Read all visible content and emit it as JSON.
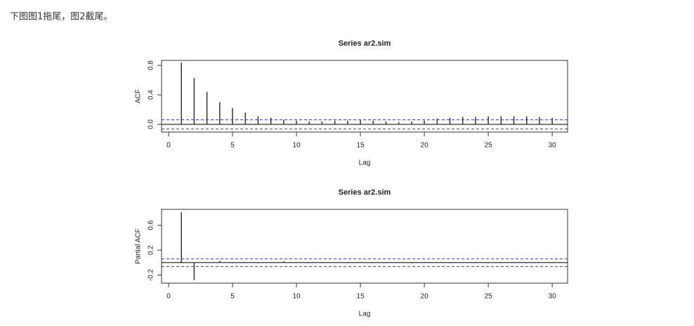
{
  "text": "下图图1拖尾，图2截尾。",
  "chart_data": [
    {
      "type": "bar",
      "title": "Series ar2.sim",
      "x_label": "Lag",
      "y_label": "ACF",
      "x": [
        1,
        2,
        3,
        4,
        5,
        6,
        7,
        8,
        9,
        10,
        11,
        12,
        13,
        14,
        15,
        16,
        17,
        18,
        19,
        20,
        21,
        22,
        23,
        24,
        25,
        26,
        27,
        28,
        29,
        30
      ],
      "values": [
        0.84,
        0.63,
        0.44,
        0.3,
        0.22,
        0.16,
        0.11,
        0.09,
        0.06,
        0.05,
        0.04,
        0.04,
        0.05,
        0.05,
        0.06,
        0.05,
        0.04,
        0.03,
        0.04,
        0.05,
        0.08,
        0.09,
        0.1,
        0.1,
        0.11,
        0.11,
        0.11,
        0.11,
        0.1,
        0.09
      ],
      "color": "#333333",
      "ci": [
        0.063,
        -0.063
      ],
      "ci_color": "#3333ff",
      "xlim": [
        -0.55,
        31.2
      ],
      "xticks": [
        0,
        5,
        10,
        15,
        20,
        25,
        30
      ],
      "ylim": [
        -0.105,
        0.867
      ],
      "yticks": [
        {
          "value": 0,
          "label": "0.0"
        },
        0.4,
        0.8
      ]
    },
    {
      "type": "bar",
      "title": "Series ar2.sim",
      "x_label": "Lag",
      "y_label": "Partial ACF",
      "x": [
        1,
        2,
        3,
        4,
        5,
        6,
        7,
        8,
        9,
        10,
        11,
        12,
        13,
        14,
        15,
        16,
        17,
        18,
        19,
        20,
        21,
        22,
        23,
        24,
        25,
        26,
        27,
        28,
        29,
        30
      ],
      "values": [
        0.81,
        -0.28,
        0.01,
        0.03,
        -0.01,
        0.01,
        -0.01,
        0.01,
        0.02,
        0.01,
        -0.01,
        0.01,
        0.01,
        -0.01,
        0.01,
        -0.01,
        0.01,
        0.01,
        -0.01,
        0.01,
        0.01,
        -0.01,
        0.01,
        0.01,
        -0.01,
        0.01,
        0.01,
        -0.01,
        0.01,
        0.01
      ],
      "color": "#333333",
      "ci": [
        0.063,
        -0.063
      ],
      "ci_color": "#3333ff",
      "xlim": [
        -0.55,
        31.2
      ],
      "xticks": [
        0,
        5,
        10,
        15,
        20,
        25,
        30
      ],
      "ylim": [
        -0.33,
        0.856
      ],
      "yticks": [
        -0.2,
        0.2,
        0.6
      ]
    }
  ]
}
